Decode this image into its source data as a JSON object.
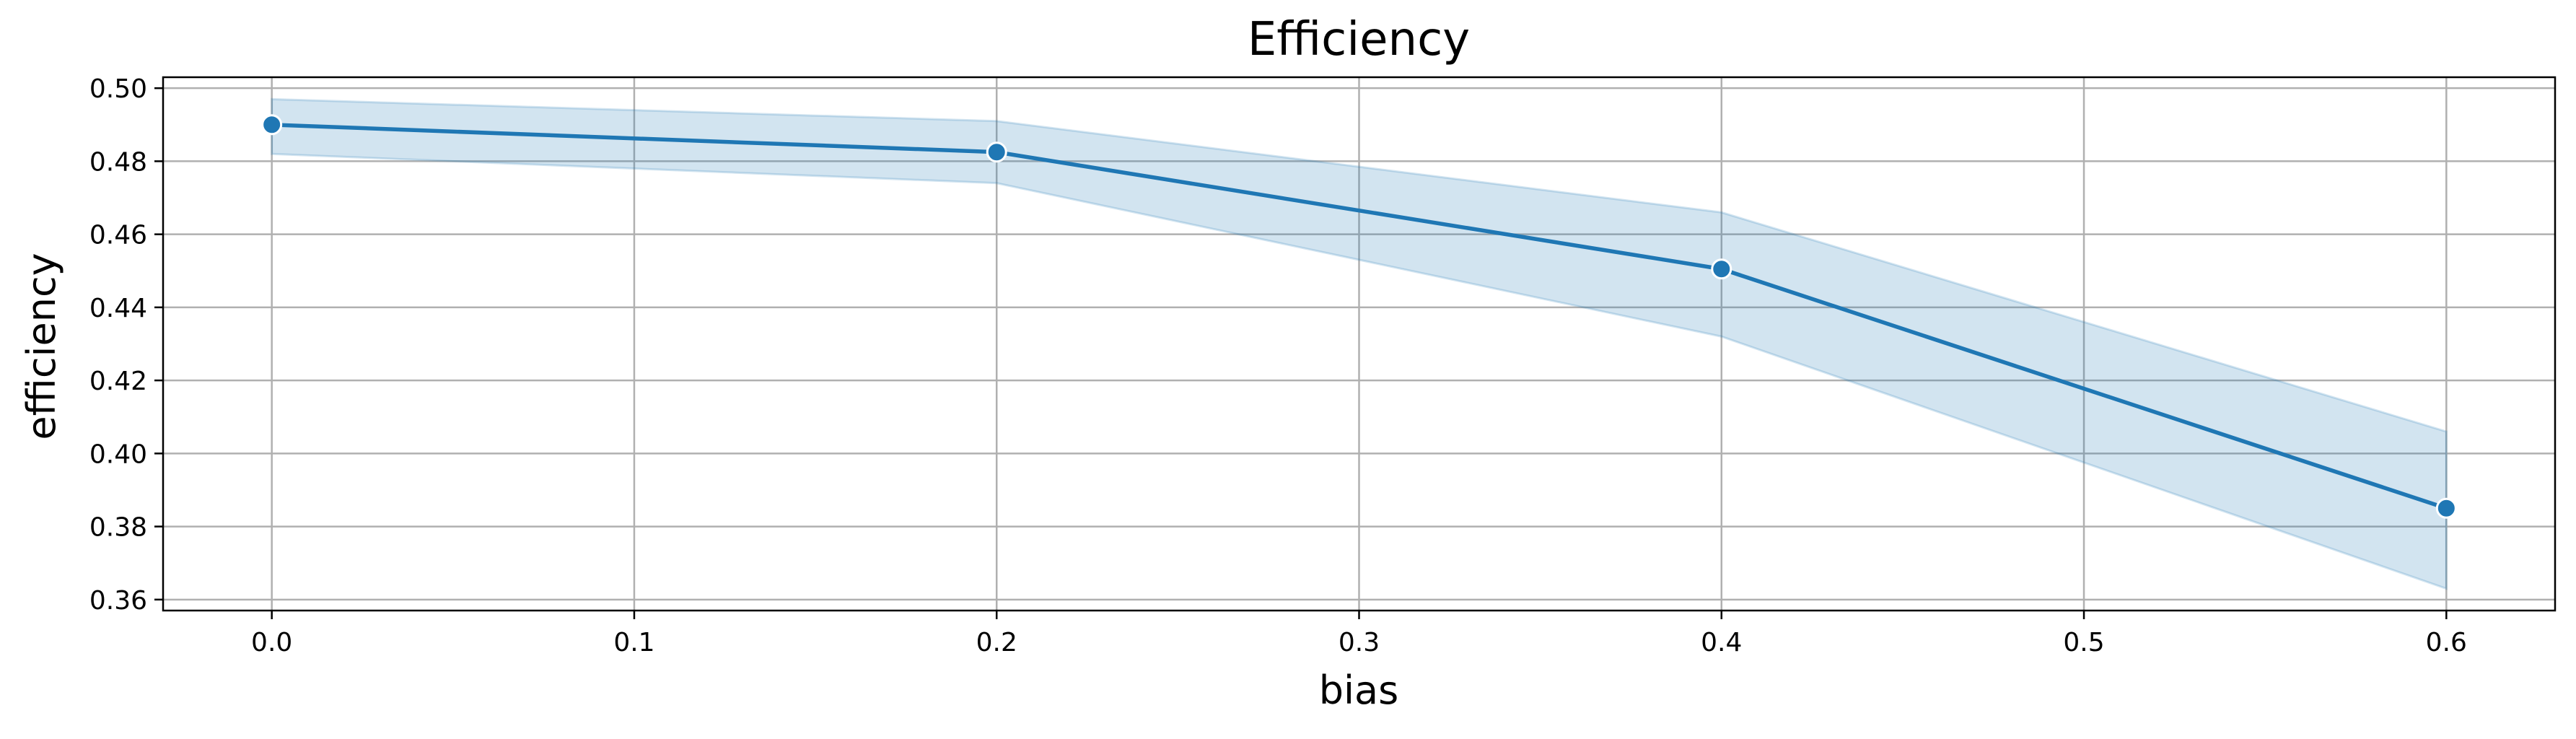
{
  "chart_data": {
    "type": "line",
    "title": "Efficiency",
    "xlabel": "bias",
    "ylabel": "efficiency",
    "xlim": [
      -0.03,
      0.63
    ],
    "ylim": [
      0.357,
      0.503
    ],
    "x_ticks": [
      0.0,
      0.1,
      0.2,
      0.3,
      0.4,
      0.5,
      0.6
    ],
    "x_tick_labels": [
      "0.0",
      "0.1",
      "0.2",
      "0.3",
      "0.4",
      "0.5",
      "0.6"
    ],
    "y_ticks": [
      0.36,
      0.38,
      0.4,
      0.42,
      0.44,
      0.46,
      0.48,
      0.5
    ],
    "y_tick_labels": [
      "0.36",
      "0.38",
      "0.40",
      "0.42",
      "0.44",
      "0.46",
      "0.48",
      "0.50"
    ],
    "grid": true,
    "legend": "none",
    "series": [
      {
        "x": [
          0.0,
          0.2,
          0.4,
          0.6
        ],
        "y": [
          0.49,
          0.4825,
          0.4505,
          0.385
        ],
        "ci_lower": [
          0.482,
          0.474,
          0.432,
          0.363
        ],
        "ci_upper": [
          0.497,
          0.491,
          0.466,
          0.406
        ],
        "color": "#1f77b4",
        "band_color": "#1f77b4"
      }
    ]
  }
}
